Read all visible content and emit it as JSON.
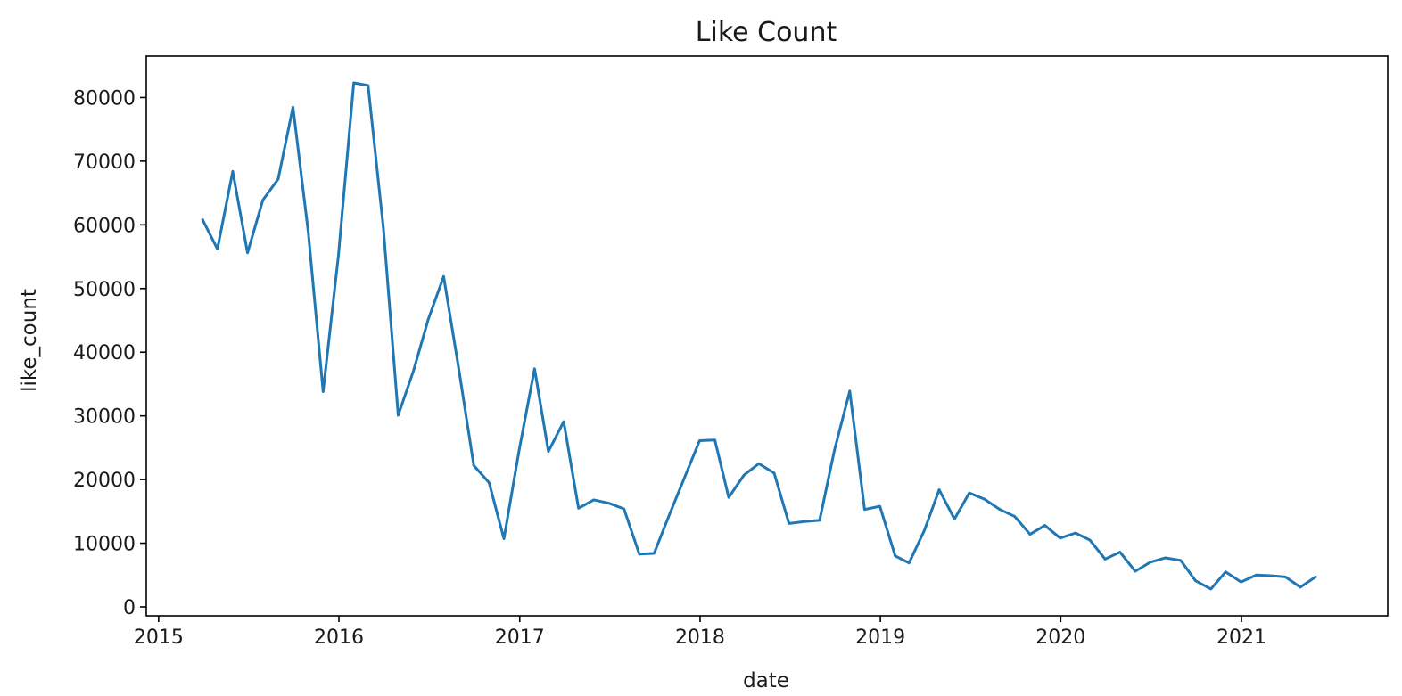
{
  "chart_data": {
    "type": "line",
    "title": "Like Count",
    "xlabel": "date",
    "ylabel": "like_count",
    "x_ticks": [
      "2015",
      "2016",
      "2017",
      "2018",
      "2019",
      "2020",
      "2021"
    ],
    "y_ticks": [
      "0",
      "10000",
      "20000",
      "30000",
      "40000",
      "50000",
      "60000",
      "70000",
      "80000"
    ],
    "xlim": [
      "2014-12-07",
      "2021-10-24"
    ],
    "ylim": [
      -1400,
      86500
    ],
    "grid": false,
    "line_color": "#1f77b4",
    "series": [
      {
        "x": [
          "2015-03-31",
          "2015-04-30",
          "2015-05-31",
          "2015-06-30",
          "2015-07-31",
          "2015-08-31",
          "2015-09-30",
          "2015-10-31",
          "2015-11-30",
          "2015-12-31",
          "2016-01-31",
          "2016-02-29",
          "2016-03-31",
          "2016-04-30",
          "2016-05-31",
          "2016-06-30",
          "2016-07-31",
          "2016-08-31",
          "2016-09-30",
          "2016-10-31",
          "2016-11-30",
          "2016-12-31",
          "2017-01-31",
          "2017-02-28",
          "2017-03-31",
          "2017-04-30",
          "2017-05-31",
          "2017-06-30",
          "2017-07-31",
          "2017-08-31",
          "2017-09-30",
          "2017-10-31",
          "2017-11-30",
          "2017-12-31",
          "2018-01-31",
          "2018-02-28",
          "2018-03-31",
          "2018-04-30",
          "2018-05-31",
          "2018-06-30",
          "2018-07-31",
          "2018-08-31",
          "2018-09-30",
          "2018-10-31",
          "2018-11-30",
          "2018-12-31",
          "2019-01-31",
          "2019-02-28",
          "2019-03-31",
          "2019-04-30",
          "2019-05-31",
          "2019-06-30",
          "2019-07-31",
          "2019-08-31",
          "2019-09-30",
          "2019-10-31",
          "2019-11-30",
          "2019-12-31",
          "2020-01-31",
          "2020-02-29",
          "2020-03-31",
          "2020-04-30",
          "2020-05-31",
          "2020-06-30",
          "2020-07-31",
          "2020-08-31",
          "2020-09-30",
          "2020-10-31",
          "2020-11-30",
          "2020-12-31",
          "2021-01-31",
          "2021-02-28",
          "2021-03-31",
          "2021-04-30",
          "2021-05-31"
        ],
        "values": [
          60800,
          56200,
          68400,
          55600,
          63900,
          67200,
          78500,
          58800,
          33800,
          55200,
          82300,
          81900,
          59500,
          30100,
          37100,
          45200,
          51900,
          37200,
          22200,
          19500,
          10700,
          24700,
          37400,
          24400,
          29100,
          15500,
          16800,
          16300,
          15400,
          8300,
          8400,
          14500,
          20200,
          26100,
          26200,
          17200,
          20700,
          22500,
          21000,
          13100,
          13400,
          13600,
          24600,
          33900,
          15300,
          15800,
          8000,
          6900,
          12000,
          18400,
          13800,
          17900,
          16900,
          15300,
          14200,
          11400,
          12800,
          10800,
          11600,
          10500,
          7500,
          8600,
          5600,
          7000,
          7700,
          7300,
          4100,
          2800,
          5500,
          3900,
          5000,
          4900,
          4700,
          3100,
          4700
        ]
      }
    ]
  }
}
